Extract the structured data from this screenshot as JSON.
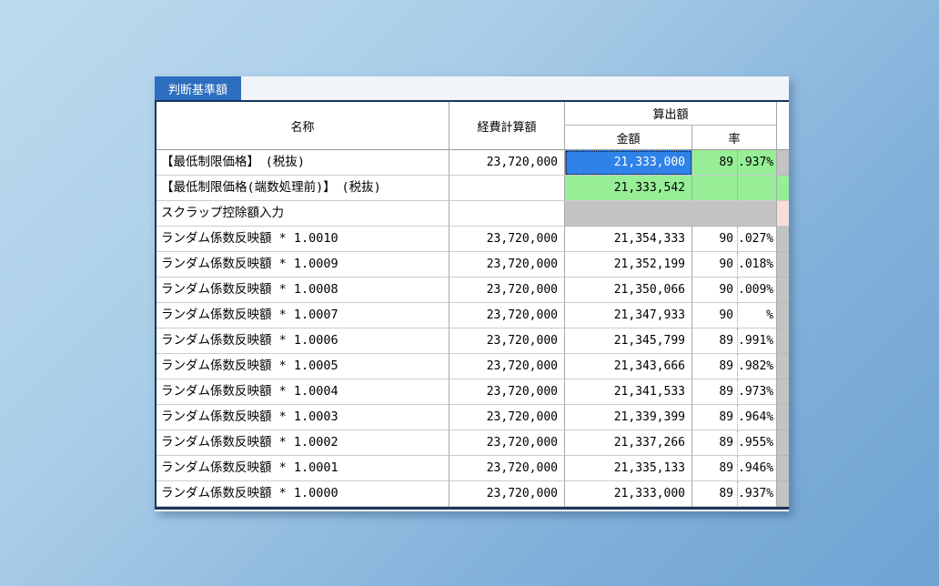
{
  "window": {
    "tab_label": "判断基準額"
  },
  "colors": {
    "navy": "#17375e",
    "tab_blue": "#2d6ebe",
    "selected_blue": "#2e82e8",
    "highlight_green": "#97ee97",
    "disabled_gray": "#c3c3c3",
    "pink_flag": "#f8ddd9"
  },
  "table": {
    "headers": {
      "name": "名称",
      "expense": "経費計算額",
      "output_group": "算出額",
      "amount": "金額",
      "rate": "率"
    },
    "rows": [
      {
        "name": "【最低制限価格】　(税抜)",
        "expense": "23,720,000",
        "amount": "21,333,000",
        "rate_int": "89",
        "rate_dec": ".937%",
        "amount_style": "sel",
        "rate_style": "green",
        "sliver_style": "gray"
      },
      {
        "name": "【最低制限価格(端数処理前)】　(税抜)",
        "expense": "",
        "amount": "21,333,542",
        "rate_int": "",
        "rate_dec": "",
        "amount_style": "green",
        "rate_style": "green",
        "sliver_style": "green"
      },
      {
        "name": "スクラップ控除額入力",
        "expense": "",
        "merged": true,
        "sliver_style": "pink"
      },
      {
        "name": "ランダム係数反映額 * 1.0010",
        "expense": "23,720,000",
        "amount": "21,354,333",
        "rate_int": "90",
        "rate_dec": ".027%",
        "sliver_style": "gray"
      },
      {
        "name": "ランダム係数反映額 * 1.0009",
        "expense": "23,720,000",
        "amount": "21,352,199",
        "rate_int": "90",
        "rate_dec": ".018%",
        "sliver_style": "gray"
      },
      {
        "name": "ランダム係数反映額 * 1.0008",
        "expense": "23,720,000",
        "amount": "21,350,066",
        "rate_int": "90",
        "rate_dec": ".009%",
        "sliver_style": "gray"
      },
      {
        "name": "ランダム係数反映額 * 1.0007",
        "expense": "23,720,000",
        "amount": "21,347,933",
        "rate_int": "90",
        "rate_dec": "%",
        "sliver_style": "gray"
      },
      {
        "name": "ランダム係数反映額 * 1.0006",
        "expense": "23,720,000",
        "amount": "21,345,799",
        "rate_int": "89",
        "rate_dec": ".991%",
        "sliver_style": "gray"
      },
      {
        "name": "ランダム係数反映額 * 1.0005",
        "expense": "23,720,000",
        "amount": "21,343,666",
        "rate_int": "89",
        "rate_dec": ".982%",
        "sliver_style": "gray"
      },
      {
        "name": "ランダム係数反映額 * 1.0004",
        "expense": "23,720,000",
        "amount": "21,341,533",
        "rate_int": "89",
        "rate_dec": ".973%",
        "sliver_style": "gray"
      },
      {
        "name": "ランダム係数反映額 * 1.0003",
        "expense": "23,720,000",
        "amount": "21,339,399",
        "rate_int": "89",
        "rate_dec": ".964%",
        "sliver_style": "gray"
      },
      {
        "name": "ランダム係数反映額 * 1.0002",
        "expense": "23,720,000",
        "amount": "21,337,266",
        "rate_int": "89",
        "rate_dec": ".955%",
        "sliver_style": "gray"
      },
      {
        "name": "ランダム係数反映額 * 1.0001",
        "expense": "23,720,000",
        "amount": "21,335,133",
        "rate_int": "89",
        "rate_dec": ".946%",
        "sliver_style": "gray"
      },
      {
        "name": "ランダム係数反映額 * 1.0000",
        "expense": "23,720,000",
        "amount": "21,333,000",
        "rate_int": "89",
        "rate_dec": ".937%",
        "sliver_style": "gray"
      }
    ]
  }
}
